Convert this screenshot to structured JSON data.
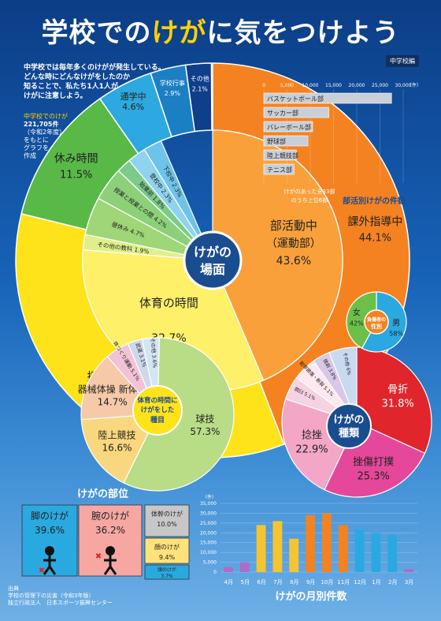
{
  "title": {
    "pre": "学校での",
    "hl1": "けが",
    "mid": "に気をつけよう"
  },
  "grade_badge": "中学校編",
  "intro": [
    "中学校では毎年多くのけがが発生している。",
    "どんな時にどんなけがをしたのか",
    "知ることで、私たち1人1人が",
    "けがに注意しよう。"
  ],
  "note": [
    "中学校でのけが",
    "221,705件",
    "（令和2年度）",
    "をもとに",
    "グラフを",
    "作成"
  ],
  "center_label": [
    "けがの",
    "場面"
  ],
  "sport_inner_label": [
    "体育の時間に",
    "けがをした",
    "種目"
  ],
  "type_label": [
    "けがの",
    "種類"
  ],
  "gender_label": [
    "負傷者の",
    "性別"
  ],
  "club_list_note": [
    "けがのあった全33部",
    "のうち上位6部"
  ],
  "club_chart_title": "部活別けがの件数",
  "part_title": "けがの部位",
  "monthly_title": "けがの月別件数",
  "footer": [
    "出典",
    "学校の管理下の災害（令和3年版）",
    "独立行政法人　日本スポーツ振興センター"
  ],
  "colors": {
    "club": "#f7941d",
    "class": "#ffe01a",
    "break": "#4cb848",
    "commute": "#2ea7e0",
    "pe": "#fff16b"
  },
  "chart_data": [
    {
      "type": "pie",
      "title": "けがの場面",
      "outer": [
        {
          "label": "課外指導中",
          "value": 44.1
        },
        {
          "label": "授業中",
          "value": 34.7
        },
        {
          "label": "休み時間",
          "value": 11.5
        },
        {
          "label": "通学中",
          "value": 4.6
        },
        {
          "label": "学校行事",
          "value": 2.9
        },
        {
          "label": "その他",
          "value": 2.1
        }
      ],
      "inner": [
        {
          "label": "部活動中（運動部）",
          "value": 43.6
        },
        {
          "label": "体育の時間",
          "value": 32.7
        },
        {
          "label": "その他の教科",
          "value": 1.9
        },
        {
          "label": "昼休み",
          "value": 4.7
        },
        {
          "label": "授業と授業との間",
          "value": 4.2
        },
        {
          "label": "始業前",
          "value": 1.8
        },
        {
          "label": "登校中",
          "value": 2.3
        },
        {
          "label": "下校中",
          "value": 2.3
        }
      ]
    },
    {
      "type": "pie",
      "title": "体育の時間にけがをした種目",
      "slices": [
        {
          "label": "球技",
          "value": 57.3
        },
        {
          "label": "陸上競技",
          "value": 16.6
        },
        {
          "label": "器械体操 新体操",
          "value": 14.7
        },
        {
          "label": "体つくり運動",
          "value": 5.1
        },
        {
          "label": "武道",
          "value": 3.1
        },
        {
          "label": "その他",
          "value": 3.6
        }
      ]
    },
    {
      "type": "pie",
      "title": "けがの種類",
      "slices": [
        {
          "label": "骨折",
          "value": 31.8
        },
        {
          "label": "挫傷打撲",
          "value": 25.3
        },
        {
          "label": "捻挫",
          "value": 22.9
        },
        {
          "label": "脱臼",
          "value": 5.1
        },
        {
          "label": "靭帯損傷・断裂",
          "value": 5.1
        },
        {
          "label": "挫創",
          "value": 3.8
        },
        {
          "label": "その他",
          "value": 6.0
        }
      ]
    },
    {
      "type": "pie",
      "title": "負傷者の性別",
      "slices": [
        {
          "label": "男",
          "value": 58.0
        },
        {
          "label": "女",
          "value": 42.0
        }
      ]
    },
    {
      "type": "bar",
      "title": "部活別けがの件数",
      "categories": [
        "バスケットボール部",
        "サッカー部",
        "バレーボール部",
        "野球部",
        "陸上競技部",
        "テニス部"
      ],
      "values": [
        27500,
        14000,
        10500,
        9500,
        7000,
        6500
      ],
      "xticks": [
        "0",
        "5,000",
        "10,000",
        "15,000",
        "20,000",
        "25,000",
        "30,000"
      ],
      "xlabel": "（件）",
      "xlim": [
        0,
        30000
      ]
    },
    {
      "type": "bar",
      "title": "けがの月別件数",
      "categories": [
        "4月",
        "5月",
        "6月",
        "7月",
        "8月",
        "9月",
        "10月",
        "11月",
        "12月",
        "1月",
        "2月",
        "3月"
      ],
      "values": [
        2500,
        5000,
        24000,
        26000,
        17000,
        29000,
        30000,
        24000,
        22000,
        20000,
        19000,
        1500
      ],
      "yticks": [
        "0",
        "5,000",
        "10,000",
        "15,000",
        "20,000",
        "25,000",
        "30,000",
        "35,000"
      ],
      "ylabel": "（件）",
      "ylim": [
        0,
        35000
      ]
    },
    {
      "type": "table",
      "title": "けがの部位",
      "cells": [
        {
          "label": "脚のけが",
          "value": "39.6%"
        },
        {
          "label": "腕のけが",
          "value": "36.2%"
        },
        {
          "label": "体幹のけが",
          "value": "10.0%"
        },
        {
          "label": "顔のけが",
          "value": "9.4%"
        },
        {
          "label": "頭のけが",
          "value": "3.7%"
        }
      ]
    }
  ]
}
